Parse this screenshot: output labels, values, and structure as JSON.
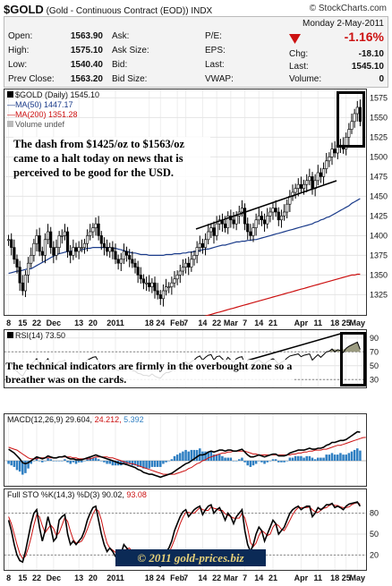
{
  "header": {
    "symbol": "$GOLD",
    "description": "(Gold - Continuous Contract (EOD))",
    "exchange": "INDX",
    "brand": "© StockCharts.com",
    "date": "Monday  2-May-2011"
  },
  "quote": {
    "open_label": "Open:",
    "open": "1563.90",
    "high_label": "High:",
    "high": "1575.10",
    "low_label": "Low:",
    "low": "1540.40",
    "prev_label": "Prev Close:",
    "prev": "1563.20",
    "ask_label": "Ask:",
    "ask": "",
    "asksize_label": "Ask Size:",
    "asksize": "",
    "bid_label": "Bid:",
    "bid": "",
    "bidsize_label": "Bid Size:",
    "bidsize": "",
    "pe_label": "P/E:",
    "pe": "",
    "eps_label": "EPS:",
    "eps": "",
    "last1_label": "Last:",
    "last1": "",
    "vwap_label": "VWAP:",
    "vwap": "",
    "change_pct": "-1.16%",
    "chg_label": "Chg:",
    "chg": "-18.10",
    "last_label": "Last:",
    "last": "1545.10",
    "volume_label": "Volume:",
    "volume": "0",
    "down_color": "#cc1111"
  },
  "price_legend": {
    "line1": "$GOLD (Daily) 1545.10",
    "line2": "MA(50) 1447.17",
    "line3": "MA(200) 1351.28",
    "line4": "Volume undef"
  },
  "rsi_legend": "RSI(14) 73.50",
  "macd_legend": {
    "a": "MACD(12,26,9) 29.604,",
    "b": "24.212,",
    "c": "5.392"
  },
  "sto_legend": {
    "a": "Full STO %K(14,3) %D(3) 90.02,",
    "b": "93.08"
  },
  "annotations": {
    "note1": "The dash from $1425/oz to $1563/oz came to a halt today on news that is perceived to be good for the USD.",
    "note2": "The technical indicators are firmly in the overbought zone so a breather was on the cards.",
    "watermark": "© 2011 gold-prices.biz"
  },
  "x_axis_labels": [
    {
      "label": "8",
      "i": 0
    },
    {
      "label": "15",
      "i": 5
    },
    {
      "label": "22",
      "i": 10
    },
    {
      "label": "Dec",
      "i": 16
    },
    {
      "label": "13",
      "i": 25
    },
    {
      "label": "20",
      "i": 30
    },
    {
      "label": "2011",
      "i": 38
    },
    {
      "label": "18",
      "i": 50
    },
    {
      "label": "24",
      "i": 54
    },
    {
      "label": "Feb",
      "i": 60
    },
    {
      "label": "7",
      "i": 63
    },
    {
      "label": "14",
      "i": 69
    },
    {
      "label": "22",
      "i": 74
    },
    {
      "label": "Mar",
      "i": 79
    },
    {
      "label": "7",
      "i": 84
    },
    {
      "label": "14",
      "i": 89
    },
    {
      "label": "21",
      "i": 94
    },
    {
      "label": "Apr",
      "i": 104
    },
    {
      "label": "11",
      "i": 110
    },
    {
      "label": "18",
      "i": 116
    },
    {
      "label": "25",
      "i": 120
    },
    {
      "label": "May",
      "i": 124
    }
  ],
  "chart_data": [
    {
      "type": "ohlc",
      "name": "price",
      "ylim": [
        1305,
        1580
      ],
      "y_ticks": [
        1325,
        1350,
        1375,
        1400,
        1425,
        1450,
        1475,
        1500,
        1525,
        1550,
        1575
      ],
      "close": [
        1395,
        1385,
        1370,
        1360,
        1340,
        1330,
        1350,
        1365,
        1375,
        1390,
        1400,
        1380,
        1375,
        1395,
        1405,
        1385,
        1375,
        1385,
        1400,
        1400,
        1405,
        1380,
        1375,
        1385,
        1380,
        1385,
        1385,
        1390,
        1400,
        1405,
        1410,
        1415,
        1400,
        1390,
        1385,
        1380,
        1385,
        1380,
        1370,
        1365,
        1370,
        1380,
        1375,
        1370,
        1365,
        1360,
        1350,
        1345,
        1340,
        1340,
        1335,
        1340,
        1330,
        1325,
        1320,
        1330,
        1335,
        1335,
        1340,
        1345,
        1350,
        1355,
        1360,
        1365,
        1360,
        1370,
        1375,
        1385,
        1390,
        1385,
        1395,
        1405,
        1410,
        1400,
        1415,
        1420,
        1415,
        1410,
        1425,
        1420,
        1415,
        1425,
        1430,
        1435,
        1415,
        1405,
        1400,
        1410,
        1420,
        1425,
        1420,
        1415,
        1425,
        1430,
        1435,
        1430,
        1420,
        1425,
        1430,
        1440,
        1450,
        1455,
        1460,
        1465,
        1460,
        1465,
        1470,
        1475,
        1460,
        1470,
        1480,
        1475,
        1485,
        1495,
        1500,
        1510,
        1505,
        1515,
        1515,
        1510,
        1525,
        1535,
        1545,
        1555,
        1563,
        1545
      ],
      "ma50": [
        1352,
        1353,
        1354,
        1355,
        1355,
        1356,
        1357,
        1358,
        1358,
        1360,
        1362,
        1364,
        1366,
        1368,
        1370,
        1372,
        1374,
        1376,
        1377,
        1378,
        1379,
        1380,
        1380,
        1381,
        1381,
        1382,
        1382,
        1383,
        1384,
        1384,
        1385,
        1385,
        1385,
        1385,
        1385,
        1385,
        1385,
        1384,
        1384,
        1383,
        1382,
        1381,
        1380,
        1379,
        1378,
        1378,
        1377,
        1376,
        1376,
        1376,
        1375,
        1375,
        1375,
        1375,
        1375,
        1375,
        1376,
        1376,
        1376,
        1377,
        1377,
        1377,
        1378,
        1378,
        1379,
        1379,
        1380,
        1380,
        1381,
        1382,
        1383,
        1383,
        1384,
        1385,
        1386,
        1387,
        1388,
        1388,
        1389,
        1390,
        1391,
        1392,
        1392,
        1393,
        1393,
        1394,
        1394,
        1395,
        1395,
        1396,
        1397,
        1398,
        1399,
        1400,
        1401,
        1402,
        1403,
        1404,
        1405,
        1406,
        1407,
        1408,
        1409,
        1410,
        1411,
        1412,
        1413,
        1414,
        1415,
        1417,
        1418,
        1420,
        1421,
        1423,
        1424,
        1426,
        1428,
        1430,
        1432,
        1434,
        1436,
        1438,
        1441,
        1443,
        1445,
        1447
      ],
      "ma200": [
        1228,
        1229,
        1230,
        1231,
        1232,
        1233,
        1234,
        1235,
        1236,
        1237,
        1238,
        1239,
        1240,
        1241,
        1242,
        1243,
        1244,
        1245,
        1246,
        1247,
        1248,
        1249,
        1250,
        1251,
        1252,
        1253,
        1254,
        1255,
        1256,
        1257,
        1258,
        1259,
        1260,
        1261,
        1262,
        1263,
        1264,
        1265,
        1266,
        1267,
        1268,
        1269,
        1270,
        1271,
        1272,
        1273,
        1274,
        1275,
        1276,
        1277,
        1278,
        1279,
        1280,
        1281,
        1282,
        1283,
        1284,
        1285,
        1286,
        1287,
        1288,
        1289,
        1290,
        1291,
        1292,
        1293,
        1294,
        1295,
        1296,
        1297,
        1298,
        1299,
        1300,
        1301,
        1302,
        1303,
        1304,
        1305,
        1306,
        1307,
        1308,
        1309,
        1310,
        1311,
        1312,
        1313,
        1314,
        1315,
        1316,
        1317,
        1318,
        1319,
        1320,
        1321,
        1322,
        1323,
        1324,
        1325,
        1326,
        1327,
        1328,
        1329,
        1330,
        1331,
        1332,
        1333,
        1334,
        1335,
        1336,
        1337,
        1338,
        1339,
        1340,
        1341,
        1342,
        1343,
        1344,
        1345,
        1346,
        1347,
        1348,
        1349,
        1350,
        1350,
        1351,
        1351
      ],
      "colors": {
        "price": "#000000",
        "ma50": "#1a3b8a",
        "ma200": "#cc1111"
      }
    },
    {
      "type": "line",
      "name": "rsi",
      "ylim": [
        20,
        100
      ],
      "y_ticks": [
        30,
        50,
        70,
        90
      ],
      "levels": [
        30,
        70
      ],
      "values": [
        55,
        50,
        45,
        42,
        38,
        35,
        42,
        48,
        52,
        56,
        60,
        52,
        50,
        56,
        60,
        52,
        48,
        52,
        56,
        56,
        58,
        50,
        48,
        52,
        50,
        52,
        52,
        54,
        58,
        60,
        62,
        63,
        56,
        52,
        50,
        48,
        50,
        48,
        45,
        43,
        45,
        49,
        47,
        45,
        43,
        42,
        39,
        38,
        36,
        36,
        35,
        38,
        35,
        33,
        32,
        37,
        40,
        40,
        43,
        46,
        49,
        52,
        54,
        56,
        52,
        56,
        58,
        62,
        64,
        58,
        62,
        65,
        66,
        58,
        63,
        64,
        60,
        56,
        62,
        58,
        55,
        60,
        62,
        63,
        52,
        47,
        46,
        52,
        56,
        58,
        55,
        52,
        56,
        58,
        60,
        57,
        52,
        55,
        57,
        61,
        64,
        65,
        66,
        67,
        63,
        65,
        66,
        67,
        58,
        62,
        66,
        62,
        66,
        70,
        71,
        74,
        70,
        73,
        72,
        69,
        75,
        78,
        80,
        82,
        84,
        73.5
      ],
      "color": "#000000"
    },
    {
      "type": "line+histogram",
      "name": "macd",
      "ylim": [
        -25,
        38
      ],
      "macd": [
        12,
        10,
        8,
        5,
        2,
        -2,
        -3,
        -2,
        0,
        2,
        4,
        3,
        2,
        3,
        5,
        4,
        3,
        3,
        4,
        4,
        5,
        3,
        2,
        2,
        1,
        1,
        1,
        2,
        3,
        4,
        5,
        6,
        5,
        4,
        3,
        2,
        1,
        0,
        -1,
        -2,
        -3,
        -3,
        -4,
        -5,
        -6,
        -7,
        -9,
        -10,
        -12,
        -13,
        -14,
        -14,
        -15,
        -16,
        -17,
        -16,
        -15,
        -14,
        -13,
        -11,
        -9,
        -7,
        -5,
        -3,
        -2,
        0,
        2,
        4,
        6,
        6,
        7,
        9,
        10,
        9,
        10,
        11,
        11,
        10,
        11,
        11,
        10,
        10,
        11,
        12,
        9,
        6,
        4,
        4,
        5,
        6,
        5,
        4,
        5,
        6,
        7,
        7,
        5,
        5,
        5,
        6,
        8,
        9,
        10,
        11,
        11,
        11,
        12,
        13,
        12,
        12,
        13,
        13,
        14,
        16,
        17,
        19,
        19,
        20,
        21,
        21,
        22,
        24,
        26,
        28,
        30,
        29.6
      ],
      "signal": [
        14,
        13,
        12,
        11,
        9,
        7,
        5,
        3,
        2,
        2,
        2,
        3,
        3,
        3,
        3,
        3,
        3,
        3,
        4,
        4,
        4,
        4,
        4,
        3,
        3,
        2,
        2,
        2,
        2,
        2,
        3,
        4,
        4,
        4,
        4,
        4,
        3,
        3,
        2,
        1,
        0,
        -1,
        -2,
        -3,
        -3,
        -4,
        -5,
        -6,
        -7,
        -8,
        -9,
        -10,
        -11,
        -12,
        -13,
        -14,
        -14,
        -14,
        -14,
        -14,
        -13,
        -12,
        -11,
        -10,
        -8,
        -7,
        -5,
        -3,
        -2,
        0,
        1,
        3,
        4,
        5,
        6,
        7,
        8,
        8,
        9,
        9,
        10,
        10,
        10,
        10,
        10,
        9,
        8,
        7,
        7,
        6,
        6,
        6,
        6,
        6,
        6,
        6,
        6,
        6,
        6,
        6,
        6,
        7,
        7,
        8,
        8,
        9,
        9,
        10,
        10,
        11,
        11,
        11,
        12,
        12,
        13,
        14,
        15,
        16,
        16,
        17,
        18,
        19,
        20,
        21,
        22,
        23,
        24,
        24.2
      ],
      "colors": {
        "macd": "#000000",
        "signal": "#cc1111",
        "histogram": "#2f7fc2"
      }
    },
    {
      "type": "line",
      "name": "stochastic",
      "ylim": [
        0,
        100
      ],
      "y_ticks": [
        20,
        50,
        80
      ],
      "levels": [
        20,
        80
      ],
      "k": [
        70,
        55,
        35,
        20,
        12,
        10,
        25,
        45,
        65,
        80,
        85,
        60,
        40,
        55,
        75,
        60,
        40,
        45,
        70,
        75,
        78,
        50,
        35,
        40,
        35,
        40,
        45,
        55,
        70,
        80,
        88,
        90,
        70,
        50,
        35,
        25,
        30,
        25,
        18,
        15,
        22,
        35,
        30,
        25,
        18,
        15,
        12,
        10,
        8,
        8,
        5,
        12,
        8,
        5,
        4,
        15,
        25,
        30,
        40,
        55,
        65,
        75,
        82,
        85,
        75,
        80,
        85,
        88,
        90,
        78,
        85,
        90,
        92,
        80,
        85,
        88,
        80,
        70,
        80,
        75,
        65,
        75,
        80,
        85,
        55,
        35,
        25,
        35,
        50,
        60,
        55,
        40,
        50,
        60,
        70,
        65,
        50,
        55,
        60,
        70,
        80,
        85,
        88,
        90,
        85,
        88,
        90,
        90,
        75,
        80,
        88,
        85,
        88,
        92,
        92,
        94,
        88,
        90,
        88,
        85,
        90,
        93,
        94,
        95,
        96,
        90
      ],
      "d": [
        75,
        65,
        50,
        35,
        22,
        15,
        18,
        30,
        45,
        63,
        78,
        75,
        62,
        52,
        58,
        63,
        58,
        48,
        52,
        63,
        74,
        68,
        54,
        42,
        37,
        38,
        40,
        47,
        57,
        68,
        79,
        86,
        83,
        70,
        52,
        37,
        30,
        27,
        24,
        19,
        18,
        24,
        29,
        30,
        24,
        19,
        15,
        12,
        10,
        9,
        7,
        8,
        8,
        8,
        6,
        8,
        15,
        23,
        32,
        42,
        53,
        65,
        74,
        81,
        81,
        80,
        80,
        84,
        88,
        85,
        84,
        84,
        89,
        87,
        86,
        84,
        84,
        79,
        77,
        75,
        73,
        73,
        73,
        80,
        73,
        58,
        38,
        32,
        37,
        48,
        55,
        52,
        48,
        50,
        60,
        65,
        62,
        57,
        55,
        62,
        70,
        78,
        84,
        88,
        88,
        88,
        88,
        89,
        85,
        82,
        81,
        84,
        87,
        88,
        91,
        93,
        91,
        91,
        89,
        88,
        88,
        89,
        92,
        94,
        95,
        93.08
      ],
      "colors": {
        "k": "#000000",
        "d": "#cc1111"
      }
    }
  ]
}
